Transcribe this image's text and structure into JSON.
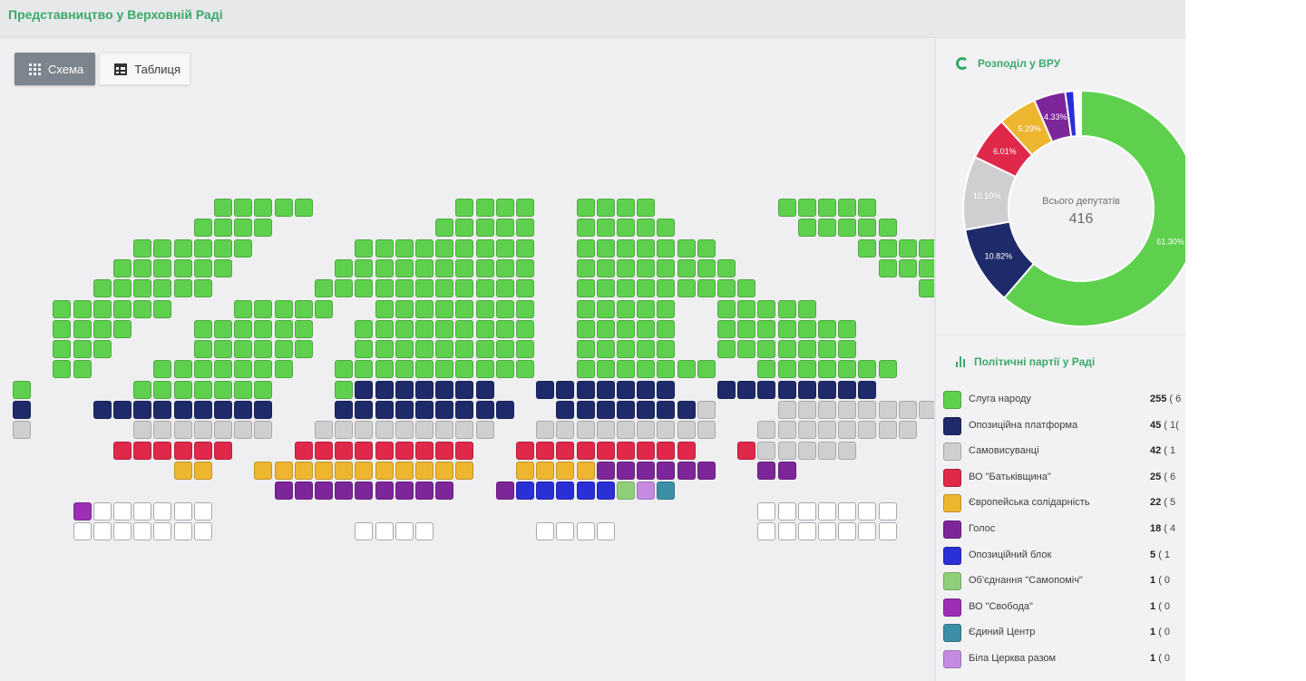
{
  "header": {
    "title": "Представництво у Верховній Раді"
  },
  "view_toggle": {
    "scheme_label": "Схема",
    "table_label": "Таблиця"
  },
  "distribution": {
    "title": "Розподіл у ВРУ",
    "center_label": "Всього депутатів",
    "total": "416",
    "slices": [
      {
        "party": "Слуга народу",
        "value": 61.3,
        "label": "61.30%",
        "color": "#5ed04e"
      },
      {
        "party": "Опозиційна платформа",
        "value": 10.82,
        "label": "10.82%",
        "color": "#1f2a6b"
      },
      {
        "party": "Самовисуванці",
        "value": 10.1,
        "label": "10.10%",
        "color": "#cfcfd1"
      },
      {
        "party": "ВО \"Батьківщина\"",
        "value": 6.01,
        "label": "6.01%",
        "color": "#e0284a"
      },
      {
        "party": "Європейська солідарність",
        "value": 5.29,
        "label": "5.29%",
        "color": "#eeb52f"
      },
      {
        "party": "Голос",
        "value": 4.33,
        "label": "4.33%",
        "color": "#7d2699"
      },
      {
        "party": "Опозиційний блок",
        "value": 1.2,
        "label": "",
        "color": "#2b2fd6"
      },
      {
        "party": "Об'єднання \"Самопоміч\"",
        "value": 0.24,
        "label": "",
        "color": "#8fcf7a"
      },
      {
        "party": "ВО \"Свобода\"",
        "value": 0.24,
        "label": "",
        "color": "#9c2fb5"
      },
      {
        "party": "Єдиний Центр",
        "value": 0.24,
        "label": "",
        "color": "#3c8fa5"
      },
      {
        "party": "Біла Церква разом",
        "value": 0.24,
        "label": "",
        "color": "#c58be0"
      }
    ]
  },
  "parties": {
    "title": "Політичні партії у Раді",
    "items": [
      {
        "name": "Слуга народу",
        "count": "255",
        "pct": "( 6",
        "color": "#5ed04e"
      },
      {
        "name": "Опозиційна платформа",
        "count": "45",
        "pct": "( 1(",
        "color": "#1f2a6b"
      },
      {
        "name": "Самовисуванці",
        "count": "42",
        "pct": "( 1",
        "color": "#cfcfd1"
      },
      {
        "name": "ВО \"Батьківщина\"",
        "count": "25",
        "pct": "( 6",
        "color": "#e0284a"
      },
      {
        "name": "Європейська солідарність",
        "count": "22",
        "pct": "( 5",
        "color": "#eeb52f"
      },
      {
        "name": "Голос",
        "count": "18",
        "pct": "( 4",
        "color": "#7d2699"
      },
      {
        "name": "Опозиційний блок",
        "count": "5",
        "pct": "( 1",
        "color": "#2b2fd6"
      },
      {
        "name": "Об'єднання \"Самопоміч\"",
        "count": "1",
        "pct": "( 0",
        "color": "#8fcf7a"
      },
      {
        "name": "ВО \"Свобода\"",
        "count": "1",
        "pct": "( 0",
        "color": "#9c2fb5"
      },
      {
        "name": "Єдиний Центр",
        "count": "1",
        "pct": "( 0",
        "color": "#3c8fa5"
      },
      {
        "name": "Біла Церква разом",
        "count": "1",
        "pct": "( 0",
        "color": "#c58be0"
      }
    ]
  },
  "seat_colors": {
    "G": "#5ed04e",
    "N": "#1f2a6b",
    "S": "#cfcfd1",
    "R": "#e0284a",
    "Y": "#eeb52f",
    "P": "#7d2699",
    "B": "#2b2fd6",
    "L": "#8fcf7a",
    "M": "#9c2fb5",
    "T": "#3c8fa5",
    "K": "#c58be0",
    "E": "#ffffff"
  },
  "seat_rows": [
    "..........GGGGG.......GGGG..GGGG......GGGGG............",
    ".........GGGG........GGGGG..GGGGG......GGGGG...........",
    "......GGGGGG.....GGGGGGGGG..GGGGGGG.......GGGGGG.......",
    ".....GGGGGG.....GGGGGGGGGG..GGGGGGGG.......GGGGGG......",
    "....GGGGGG.....GGGGGGGGGGG..GGGGGGGGG........GGGGGG....",
    "..GGGGGG...GGGGG..GGGGGGGG..GGGGG..GGGGG.......GGGGGG.G",
    "..GGGG...GGGGGG..GGGGGGGGG..GGGGG..GGGGGGG.......GGGGG.G",
    "..GGG....GGGGGG..GGGGGGGGG..GGGGG..GGGGGGG.........GGG.G",
    "..GG...GGGGGGG..GGGGGGGGGG..GGGGGGG..GGGGGGG........GG.G",
    "G.....GGGGGGG...GNNNNNNN..NNNNNNN..NNNNNNNN.........N",
    "N...NNNNNNNNN...NNNNNNNNN..NNNNNNNS...SSSSSSSSS......S",
    "S.....SSSSSSS..SSSSSSSSS..SSSSSSSSS..SSSSSSSS.......S",
    ".....RRRRRR...RRRRRRRRR..RRRRRRRRR..RSSSSS..........Y",
    "........YY..YYYYYYYYYYY..YYYYPPPPPP..PP..........",
    ".............PPPPPPPPP..PBBBBBLKT.................",
    "...MEEEEEE...........................EEEEEEE......",
    "...EEEEEEE.......EEEE.....EEEE.......EEEEEEE......"
  ]
}
